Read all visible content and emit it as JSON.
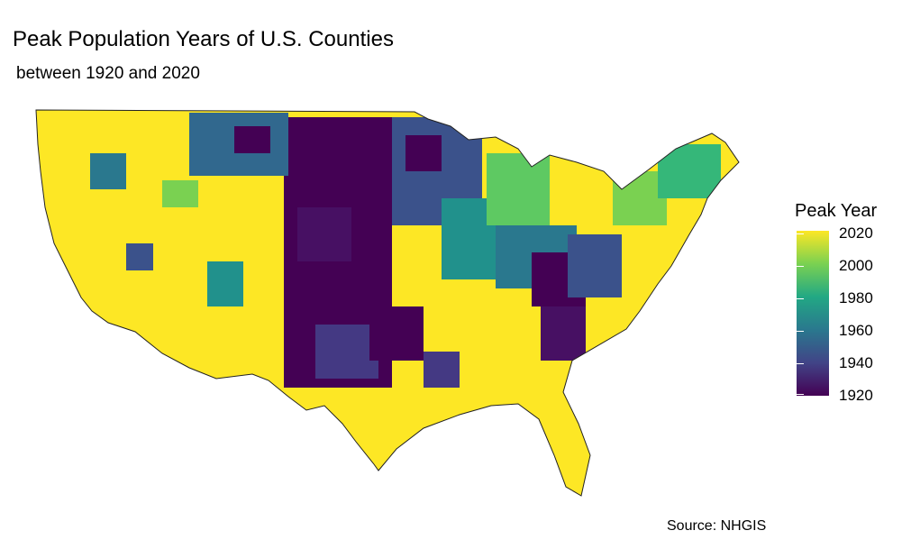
{
  "header": {
    "title": "Peak Population Years of U.S. Counties",
    "subtitle": "between 1920 and 2020"
  },
  "legend": {
    "title": "Peak Year",
    "ticks": [
      "2020",
      "2000",
      "1980",
      "1960",
      "1940",
      "1920"
    ],
    "range": [
      1920,
      2020
    ],
    "colors": [
      "#440154",
      "#414487",
      "#2a788e",
      "#22a884",
      "#7ad151",
      "#fde725"
    ]
  },
  "caption": "Source: NHGIS",
  "map_data": {
    "type": "choropleth",
    "region": "contiguous United States counties",
    "variable": "Peak Year",
    "palette": "viridis",
    "dominant_regions": [
      {
        "region": "West Coast and Mountain West",
        "tone": "mostly 2020 (yellow)"
      },
      {
        "region": "Great Plains",
        "tone": "mostly 1920-1940 (dark purple)"
      },
      {
        "region": "Upper Midwest / Great Lakes",
        "tone": "mixed, many 1950-1980 (teal)"
      },
      {
        "region": "Appalachia",
        "tone": "mixed dark purple and teal"
      },
      {
        "region": "Southeast and Florida",
        "tone": "mostly 2020 (yellow)"
      },
      {
        "region": "Northeast",
        "tone": "mixed green and yellow"
      }
    ]
  }
}
